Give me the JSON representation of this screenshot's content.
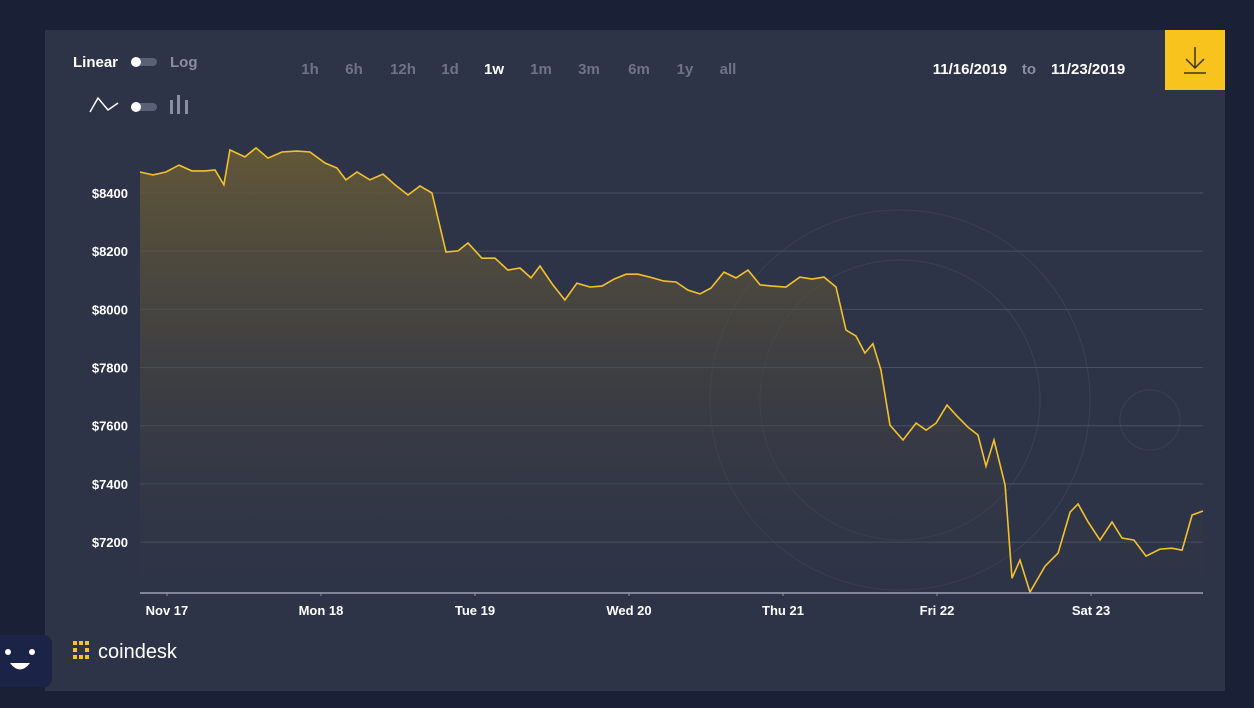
{
  "controls": {
    "scale_on": "Linear",
    "scale_off": "Log",
    "ranges": [
      "1h",
      "6h",
      "12h",
      "1d",
      "1w",
      "1m",
      "3m",
      "6m",
      "1y",
      "all"
    ],
    "active_range": "1w",
    "date_from": "11/16/2019",
    "date_sep": "to",
    "date_to": "11/23/2019",
    "brand": "coindesk"
  },
  "chart_data": {
    "type": "area",
    "color": "#f2c12e",
    "grid": true,
    "xlim": [
      16.825,
      23.727
    ],
    "ylim": [
      7025,
      8600
    ],
    "xticks": [
      {
        "value": 17,
        "label": "Nov 17"
      },
      {
        "value": 18,
        "label": "Mon 18"
      },
      {
        "value": 19,
        "label": "Tue 19"
      },
      {
        "value": 20,
        "label": "Wed 20"
      },
      {
        "value": 21,
        "label": "Thu 21"
      },
      {
        "value": 22,
        "label": "Fri 22"
      },
      {
        "value": 23,
        "label": "Sat 23"
      }
    ],
    "yticks": [
      {
        "value": 7200,
        "label": "$7200"
      },
      {
        "value": 7400,
        "label": "$7400"
      },
      {
        "value": 7600,
        "label": "$7600"
      },
      {
        "value": 7800,
        "label": "$7800"
      },
      {
        "value": 8000,
        "label": "$8000"
      },
      {
        "value": 8200,
        "label": "$8200"
      },
      {
        "value": 8400,
        "label": "$8400"
      }
    ],
    "x": [
      16.825,
      16.909,
      16.994,
      17.078,
      17.162,
      17.247,
      17.312,
      17.37,
      17.409,
      17.506,
      17.578,
      17.656,
      17.747,
      17.844,
      17.929,
      18.026,
      18.104,
      18.162,
      18.234,
      18.318,
      18.403,
      18.481,
      18.565,
      18.643,
      18.721,
      18.812,
      18.89,
      18.955,
      19.045,
      19.13,
      19.214,
      19.292,
      19.364,
      19.422,
      19.506,
      19.584,
      19.662,
      19.747,
      19.825,
      19.903,
      19.981,
      20.058,
      20.136,
      20.227,
      20.305,
      20.383,
      20.461,
      20.532,
      20.617,
      20.695,
      20.773,
      20.851,
      20.929,
      21.019,
      21.11,
      21.188,
      21.266,
      21.344,
      21.409,
      21.474,
      21.532,
      21.584,
      21.636,
      21.695,
      21.779,
      21.864,
      21.929,
      21.994,
      22.065,
      22.13,
      22.201,
      22.266,
      22.318,
      22.37,
      22.442,
      22.487,
      22.539,
      22.604,
      22.701,
      22.786,
      22.864,
      22.916,
      22.981,
      23.058,
      23.136,
      23.201,
      23.279,
      23.357,
      23.448,
      23.526,
      23.591,
      23.656,
      23.727
    ],
    "values": [
      8472,
      8462,
      8472,
      8496,
      8476,
      8476,
      8479,
      8428,
      8548,
      8524,
      8555,
      8520,
      8541,
      8544,
      8541,
      8503,
      8486,
      8445,
      8472,
      8445,
      8465,
      8428,
      8393,
      8424,
      8400,
      8197,
      8201,
      8228,
      8176,
      8176,
      8135,
      8142,
      8108,
      8149,
      8084,
      8032,
      8090,
      8077,
      8080,
      8104,
      8121,
      8121,
      8111,
      8097,
      8094,
      8066,
      8053,
      8073,
      8128,
      8108,
      8135,
      8084,
      8080,
      8077,
      8111,
      8104,
      8111,
      8077,
      7929,
      7908,
      7850,
      7882,
      7791,
      7602,
      7551,
      7609,
      7585,
      7609,
      7671,
      7633,
      7595,
      7568,
      7461,
      7551,
      7396,
      7076,
      7138,
      7028,
      7117,
      7162,
      7303,
      7331,
      7269,
      7207,
      7269,
      7214,
      7207,
      7152,
      7176,
      7179,
      7172,
      7293,
      7307
    ]
  }
}
